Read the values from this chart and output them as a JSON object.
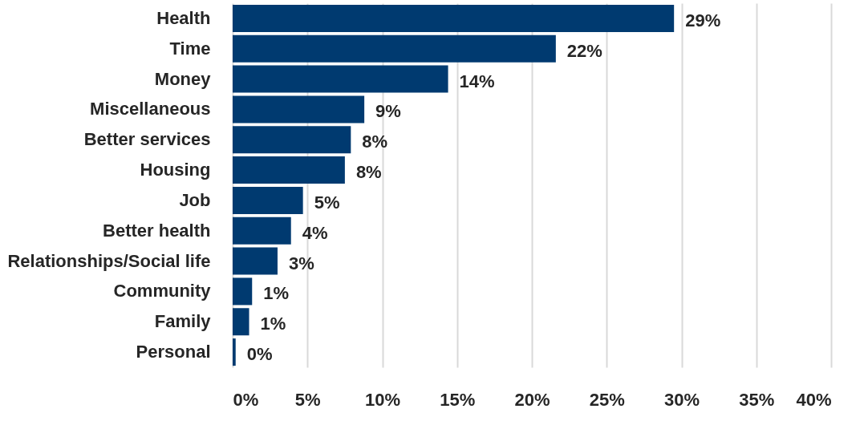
{
  "chart_data": {
    "type": "bar",
    "orientation": "horizontal",
    "categories": [
      "Health",
      "Time",
      "Money",
      "Miscellaneous",
      "Better services",
      "Housing",
      "Job",
      "Better health",
      "Relationships/Social life",
      "Community",
      "Family",
      "Personal"
    ],
    "values": [
      29.5,
      21.6,
      14.4,
      8.8,
      7.9,
      7.5,
      4.7,
      3.9,
      3.0,
      1.3,
      1.1,
      0.2
    ],
    "value_labels": [
      "29%",
      "22%",
      "14%",
      "9%",
      "8%",
      "8%",
      "5%",
      "4%",
      "3%",
      "1%",
      "1%",
      "0%"
    ],
    "color": "#003a70",
    "xlim": [
      0,
      40
    ],
    "xticks": [
      {
        "value": 0,
        "label": "0%"
      },
      {
        "value": 5,
        "label": "5%"
      },
      {
        "value": 10,
        "label": "10%"
      },
      {
        "value": 15,
        "label": "15%"
      },
      {
        "value": 20,
        "label": "20%"
      },
      {
        "value": 25,
        "label": "25%"
      },
      {
        "value": 30,
        "label": "30%"
      },
      {
        "value": 35,
        "label": "35%"
      },
      {
        "value": 40,
        "label": "40%"
      }
    ],
    "grid": "x"
  }
}
